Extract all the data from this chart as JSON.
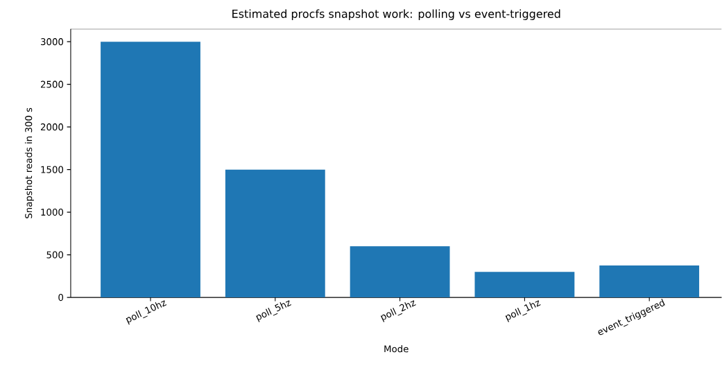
{
  "chart_data": {
    "type": "bar",
    "title": "Estimated procfs snapshot work: polling vs event-triggered",
    "xlabel": "Mode",
    "ylabel": "Snapshot reads in 300 s",
    "categories": [
      "poll_10hz",
      "poll_5hz",
      "poll_2hz",
      "poll_1hz",
      "event_triggered"
    ],
    "values": [
      3000,
      1500,
      600,
      300,
      375
    ],
    "color": "#1f77b4",
    "ylim": [
      0,
      3150
    ],
    "yticks": [
      0,
      500,
      1000,
      1500,
      2000,
      2500,
      3000
    ],
    "grid": false
  }
}
